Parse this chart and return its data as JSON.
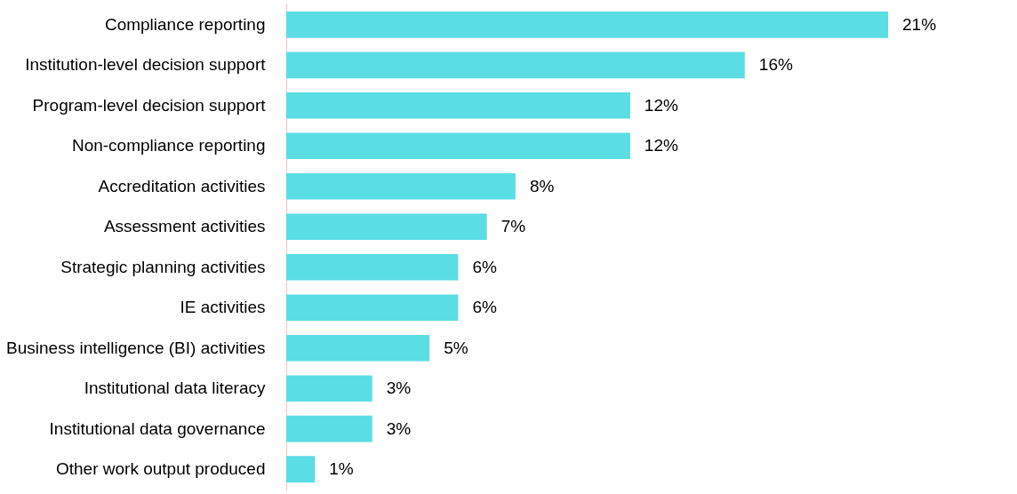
{
  "chart_data": {
    "type": "bar",
    "orientation": "horizontal",
    "categories": [
      "Compliance reporting",
      "Institution-level decision support",
      "Program-level decision support",
      "Non-compliance reporting",
      "Accreditation activities",
      "Assessment activities",
      "Strategic planning activities",
      "IE activities",
      "Business intelligence (BI) activities",
      "Institutional data literacy",
      "Institutional data governance",
      "Other work output produced"
    ],
    "values": [
      21,
      16,
      12,
      12,
      8,
      7,
      6,
      6,
      5,
      3,
      3,
      1
    ],
    "value_labels": [
      "21%",
      "16%",
      "12%",
      "12%",
      "8%",
      "7%",
      "6%",
      "6%",
      "5%",
      "3%",
      "3%",
      "1%"
    ],
    "color": "#5bdde4",
    "grid": false
  }
}
